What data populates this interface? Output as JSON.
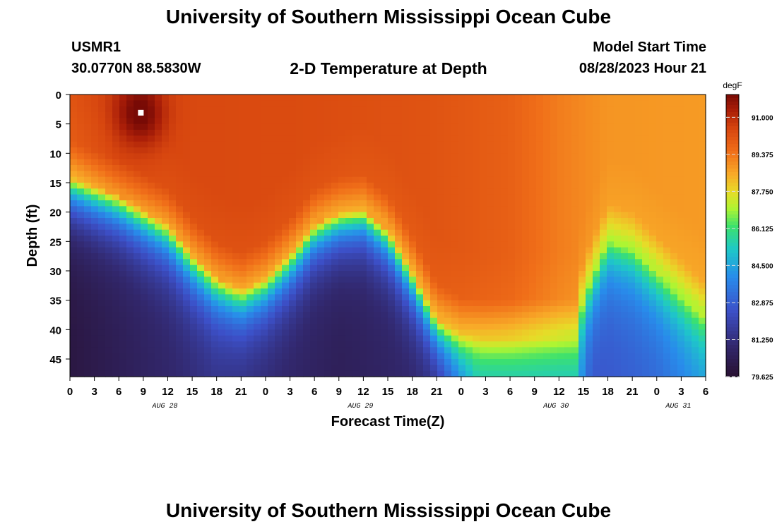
{
  "page": {
    "title_top": "University of Southern Mississippi Ocean Cube",
    "title_bottom": "University of Southern Mississippi Ocean Cube",
    "station_id": "USMR1",
    "station_coords": "30.0770N  88.5830W",
    "subtitle": "2-D Temperature at Depth",
    "model_start_label": "Model Start Time",
    "model_start_value": "08/28/2023 Hour 21"
  },
  "chart_data": {
    "type": "heatmap",
    "title": "2-D Temperature at Depth",
    "xlabel": "Forecast Time(Z)",
    "ylabel": "Depth (ft)",
    "x_unit": "hours since 08/28 00Z",
    "xlim": [
      0,
      78
    ],
    "ylim": [
      0,
      48
    ],
    "y_inverted": true,
    "x_ticks": [
      {
        "h": 0,
        "label": "0"
      },
      {
        "h": 3,
        "label": "3"
      },
      {
        "h": 6,
        "label": "6"
      },
      {
        "h": 9,
        "label": "9"
      },
      {
        "h": 12,
        "label": "12"
      },
      {
        "h": 15,
        "label": "15"
      },
      {
        "h": 18,
        "label": "18"
      },
      {
        "h": 21,
        "label": "21"
      },
      {
        "h": 24,
        "label": "0"
      },
      {
        "h": 27,
        "label": "3"
      },
      {
        "h": 30,
        "label": "6"
      },
      {
        "h": 33,
        "label": "9"
      },
      {
        "h": 36,
        "label": "12"
      },
      {
        "h": 39,
        "label": "15"
      },
      {
        "h": 42,
        "label": "18"
      },
      {
        "h": 45,
        "label": "21"
      },
      {
        "h": 48,
        "label": "0"
      },
      {
        "h": 51,
        "label": "3"
      },
      {
        "h": 54,
        "label": "6"
      },
      {
        "h": 57,
        "label": "9"
      },
      {
        "h": 60,
        "label": "12"
      },
      {
        "h": 63,
        "label": "15"
      },
      {
        "h": 66,
        "label": "18"
      },
      {
        "h": 69,
        "label": "21"
      },
      {
        "h": 72,
        "label": "0"
      },
      {
        "h": 75,
        "label": "3"
      },
      {
        "h": 78,
        "label": "6"
      }
    ],
    "date_labels": [
      {
        "h": 12,
        "label": "AUG 28"
      },
      {
        "h": 36,
        "label": "AUG 29"
      },
      {
        "h": 60,
        "label": "AUG 30"
      },
      {
        "h": 75,
        "label": "AUG 31"
      }
    ],
    "y_ticks": [
      0,
      5,
      10,
      15,
      20,
      25,
      30,
      35,
      40,
      45
    ],
    "marker": {
      "h": 8.7,
      "depth": 3.1
    },
    "thermocline_depth_ft": [
      [
        0,
        14
      ],
      [
        6,
        17
      ],
      [
        12,
        22
      ],
      [
        15,
        27
      ],
      [
        18,
        31
      ],
      [
        21,
        33
      ],
      [
        24,
        31
      ],
      [
        27,
        27
      ],
      [
        30,
        22
      ],
      [
        33,
        20
      ],
      [
        36,
        19.5
      ],
      [
        39,
        23
      ],
      [
        42,
        30
      ],
      [
        45,
        38
      ],
      [
        48,
        40.5
      ],
      [
        51,
        41
      ],
      [
        54,
        41
      ],
      [
        57,
        41
      ],
      [
        60,
        41
      ],
      [
        62,
        41
      ],
      [
        63,
        34
      ],
      [
        66,
        24.5
      ],
      [
        69,
        26
      ],
      [
        72,
        30
      ],
      [
        75,
        34
      ],
      [
        78,
        38
      ]
    ],
    "colorbar": {
      "unit": "degF",
      "min": 79.625,
      "max": 92.0,
      "labels": [
        "91.000",
        "89.375",
        "87.750",
        "86.125",
        "84.500",
        "82.875",
        "81.250",
        "79.625"
      ]
    }
  }
}
